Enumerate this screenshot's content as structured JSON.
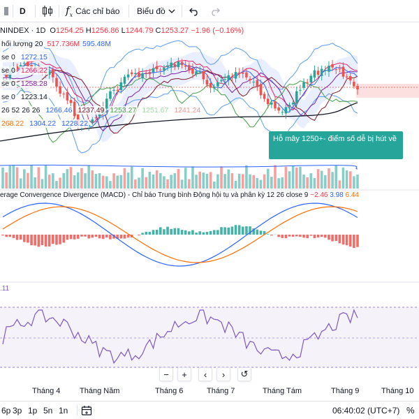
{
  "toolbar": {
    "interval": "D",
    "indicators_label": "Các chỉ báo",
    "layout_label": "Biểu đồ",
    "fx_icon": "function-icon",
    "candle_icon": "candlestick-icon"
  },
  "symbol": {
    "name": "NINDEX · 1D",
    "o_key": "O",
    "o_val": "1254.25",
    "h_key": "H",
    "h_val": "1256.86",
    "l_key": "L",
    "l_val": "1244.79",
    "c_key": "C",
    "c_val": "1253.27",
    "change": "−1.96 (−0.16%)"
  },
  "legend": {
    "volume": {
      "label": "hối lượng 20",
      "v1": "517.736M",
      "v2": "595.48M"
    },
    "row1": {
      "label": "se 0",
      "value": "1272.15"
    },
    "row2": {
      "label": "se 0",
      "value": "1266.22"
    },
    "row3": {
      "label": "se 0",
      "value": "1258.28"
    },
    "row4": {
      "label": "se 0",
      "value": "1223.14"
    },
    "row5": {
      "prefix": "26 52 26 26",
      "v1": "1266.46",
      "v2": "1237.49",
      "v3": "1253.27",
      "v4": "1251.67",
      "v5": "1241.24"
    },
    "row6": {
      "v1": "268.22",
      "v2": "1304.22",
      "v3": "1228.22"
    }
  },
  "callout": {
    "text": "Hỗ mây 1250+- điểm số dễ bị hút về"
  },
  "macd": {
    "title": "erage Convergence Divergence (MACD) - Chỉ báo Trung bình Động hội tụ và phân kỳ 12 26 close 9",
    "v1": "−2.46",
    "v2": "3.98",
    "v3": "6.44"
  },
  "rsi": {
    "value": ".11"
  },
  "zoom": {
    "minus": "−",
    "plus": "+",
    "left": "‹",
    "right": "›",
    "reset": "↺"
  },
  "time_axis": [
    "Tháng 4",
    "Tháng Năm",
    "Tháng 6",
    "Tháng 7",
    "Tháng Tám",
    "Tháng 9",
    "Tháng 10"
  ],
  "bottom": {
    "ranges": [
      "6p",
      "3p",
      "1p",
      "5n",
      "1n"
    ],
    "clock": "06:40:02 (UTC+7)",
    "percent": "%"
  },
  "colors": {
    "up": "#26a69a",
    "down": "#ef5350",
    "macd": "#2962ff",
    "signal": "#ff6d00",
    "rsi": "#7e57c2"
  }
}
